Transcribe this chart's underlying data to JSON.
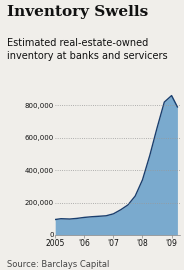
{
  "title": "Inventory Swells",
  "subtitle": "Estimated real-estate-owned\ninventory at banks and servicers",
  "source": "Source: Barclays Capital",
  "x_values": [
    2005.0,
    2005.2,
    2005.5,
    2005.75,
    2006.0,
    2006.25,
    2006.5,
    2006.75,
    2007.0,
    2007.25,
    2007.5,
    2007.75,
    2008.0,
    2008.25,
    2008.5,
    2008.75,
    2009.0,
    2009.2
  ],
  "y_values": [
    95000,
    100000,
    98000,
    102000,
    108000,
    112000,
    115000,
    118000,
    130000,
    155000,
    185000,
    240000,
    340000,
    490000,
    660000,
    820000,
    860000,
    790000
  ],
  "fill_color": "#7aaace",
  "line_color": "#1a3f6f",
  "background_color": "#f0eeea",
  "title_fontsize": 11,
  "subtitle_fontsize": 7,
  "source_fontsize": 6,
  "ylim": [
    0,
    900000
  ],
  "yticks": [
    0,
    200000,
    400000,
    600000,
    800000
  ],
  "ytick_labels": [
    "0",
    "200,000",
    "400,000",
    "600,000",
    "800,000"
  ],
  "xtick_positions": [
    2005,
    2006,
    2007,
    2008,
    2009
  ],
  "xtick_labels": [
    "2005",
    "'06",
    "'07",
    "'08",
    "'09"
  ],
  "grid_color": "#999999",
  "text_color": "#111111"
}
